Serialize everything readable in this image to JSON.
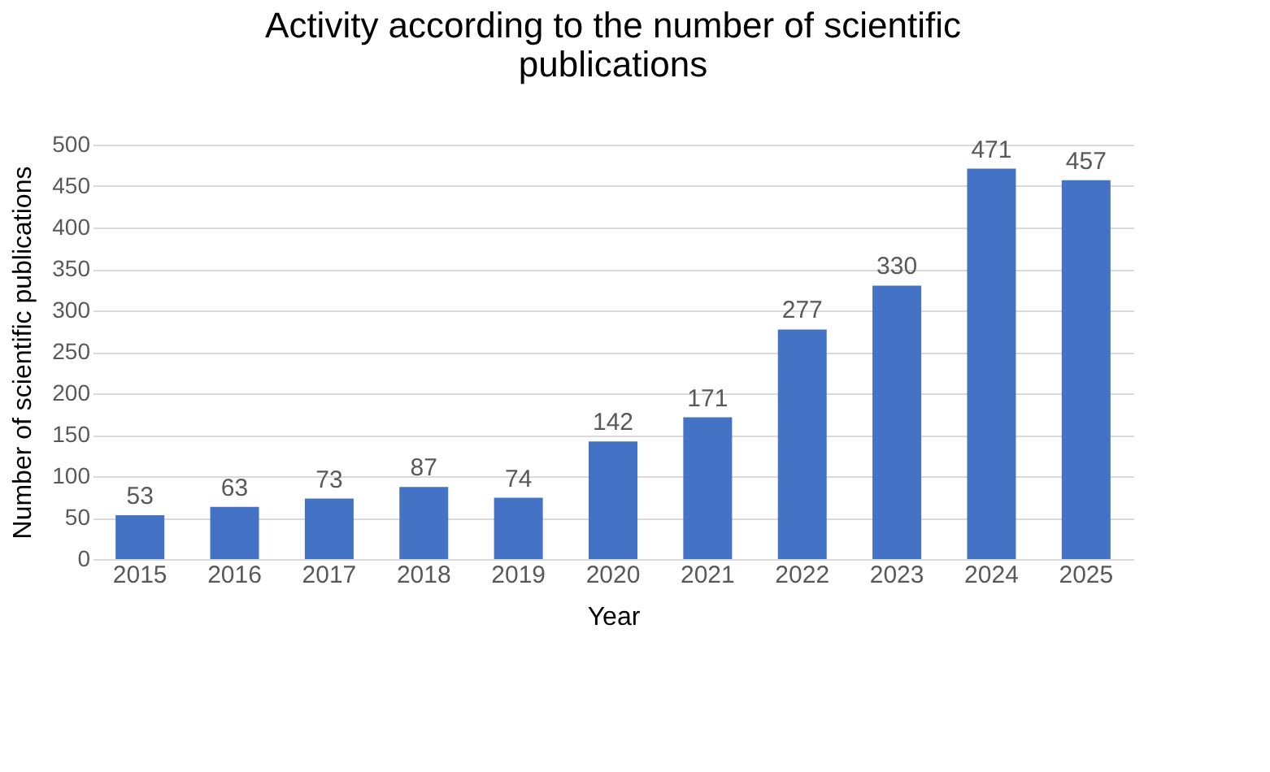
{
  "chart_data": {
    "type": "bar",
    "title": "Activity according to the number of scientific publications",
    "xlabel": "Year",
    "ylabel": "Number of scientific publications",
    "categories": [
      "2015",
      "2016",
      "2017",
      "2018",
      "2019",
      "2020",
      "2021",
      "2022",
      "2023",
      "2024",
      "2025"
    ],
    "values": [
      53,
      63,
      73,
      87,
      74,
      142,
      171,
      277,
      330,
      471,
      457
    ],
    "color": "#4472c4",
    "ylim": [
      0,
      500
    ],
    "yticks": [
      0,
      50,
      100,
      150,
      200,
      250,
      300,
      350,
      400,
      450,
      500
    ],
    "grid": "y",
    "data_labels": true
  }
}
